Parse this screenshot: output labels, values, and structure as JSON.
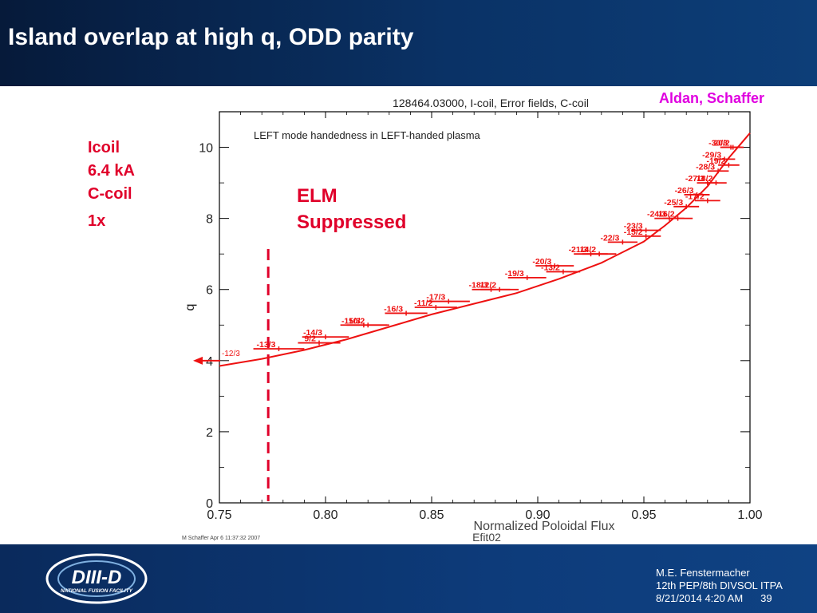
{
  "slide": {
    "title": "Island overlap at high q, ODD parity",
    "authors": "Aldan, Schaffer",
    "coil_lines": [
      "Icoil",
      "6.4 kA",
      "C-coil",
      "1x"
    ],
    "elm_lines": [
      "ELM",
      "Suppressed"
    ]
  },
  "footer": {
    "author": "M.E. Fenstermacher",
    "meeting": "12th PEP/8th DIVSOL ITPA",
    "date": "8/21/2014 4:20 AM",
    "page": "39"
  },
  "logo": {
    "main": "DIII-D",
    "sub": "NATIONAL FUSION FACILITY"
  },
  "colors": {
    "header": "#0a3266",
    "footer": "#0d3b7a",
    "series": "#ee1111",
    "label": "#e0002a",
    "authors": "#e000e0"
  },
  "chart_data": {
    "type": "line",
    "title": "128464.03000, I-coil, Error fields, C-coil",
    "subtitle": "LEFT mode handedness in LEFT-handed plasma",
    "xlabel": "Normalized Poloidal Flux",
    "xlabel2": "Efit02",
    "ylabel": "q",
    "xlim": [
      0.75,
      1.0
    ],
    "ylim": [
      0,
      11
    ],
    "xticks": [
      "0.75",
      "0.80",
      "0.85",
      "0.90",
      "0.95",
      "1.00"
    ],
    "yticks": [
      "0",
      "2",
      "4",
      "6",
      "8",
      "10"
    ],
    "grid": false,
    "footnote": "M Schaffer Apr  6 11:37:32 2007",
    "q_profile": {
      "x": [
        0.75,
        0.77,
        0.79,
        0.81,
        0.83,
        0.85,
        0.87,
        0.89,
        0.91,
        0.93,
        0.95,
        0.96,
        0.97,
        0.98,
        0.985,
        0.99,
        0.995,
        1.0
      ],
      "y": [
        3.85,
        4.05,
        4.3,
        4.6,
        4.95,
        5.3,
        5.6,
        5.9,
        6.3,
        6.75,
        7.35,
        7.8,
        8.3,
        8.9,
        9.3,
        9.7,
        10.05,
        10.4
      ]
    },
    "boundary_psi": 0.773,
    "edge_arrow_q": 4.0,
    "edge_arrow_label": "-12/3",
    "islands": [
      {
        "label": "-13/3",
        "psi": 0.778,
        "q": 4.333,
        "half_width": 0.012
      },
      {
        "label": "9/2",
        "psi": 0.797,
        "q": 4.5,
        "half_width": 0.01
      },
      {
        "label": "-14/3",
        "psi": 0.8,
        "q": 4.667,
        "half_width": 0.011
      },
      {
        "label": "-15/3",
        "psi": 0.818,
        "q": 5.0,
        "half_width": 0.011
      },
      {
        "label": "10/2",
        "psi": 0.82,
        "q": 5.0,
        "half_width": 0.01
      },
      {
        "label": "-16/3",
        "psi": 0.838,
        "q": 5.333,
        "half_width": 0.01
      },
      {
        "label": "-11/2",
        "psi": 0.852,
        "q": 5.5,
        "half_width": 0.01
      },
      {
        "label": "-17/3",
        "psi": 0.858,
        "q": 5.667,
        "half_width": 0.01
      },
      {
        "label": "-18/3",
        "psi": 0.878,
        "q": 6.0,
        "half_width": 0.009
      },
      {
        "label": "12/2",
        "psi": 0.882,
        "q": 6.0,
        "half_width": 0.009
      },
      {
        "label": "-19/3",
        "psi": 0.895,
        "q": 6.333,
        "half_width": 0.009
      },
      {
        "label": "-20/3",
        "psi": 0.908,
        "q": 6.667,
        "half_width": 0.009
      },
      {
        "label": "-13/2",
        "psi": 0.912,
        "q": 6.5,
        "half_width": 0.008
      },
      {
        "label": "-21/3",
        "psi": 0.925,
        "q": 7.0,
        "half_width": 0.008
      },
      {
        "label": "14/2",
        "psi": 0.929,
        "q": 7.0,
        "half_width": 0.008
      },
      {
        "label": "-22/3",
        "psi": 0.94,
        "q": 7.333,
        "half_width": 0.007
      },
      {
        "label": "-15/2",
        "psi": 0.951,
        "q": 7.5,
        "half_width": 0.007
      },
      {
        "label": "-23/3",
        "psi": 0.951,
        "q": 7.667,
        "half_width": 0.007
      },
      {
        "label": "-24/3",
        "psi": 0.962,
        "q": 8.0,
        "half_width": 0.007
      },
      {
        "label": "16/2",
        "psi": 0.966,
        "q": 8.0,
        "half_width": 0.007
      },
      {
        "label": "-25/3",
        "psi": 0.97,
        "q": 8.333,
        "half_width": 0.006
      },
      {
        "label": "-17/2",
        "psi": 0.98,
        "q": 8.5,
        "half_width": 0.006
      },
      {
        "label": "-26/3",
        "psi": 0.975,
        "q": 8.667,
        "half_width": 0.006
      },
      {
        "label": "-27/3",
        "psi": 0.98,
        "q": 9.0,
        "half_width": 0.005
      },
      {
        "label": "18/2",
        "psi": 0.984,
        "q": 9.0,
        "half_width": 0.005
      },
      {
        "label": "-28/3",
        "psi": 0.985,
        "q": 9.333,
        "half_width": 0.005
      },
      {
        "label": "-19/2",
        "psi": 0.99,
        "q": 9.5,
        "half_width": 0.005
      },
      {
        "label": "-29/3",
        "psi": 0.988,
        "q": 9.667,
        "half_width": 0.005
      },
      {
        "label": "20/2",
        "psi": 0.992,
        "q": 10.0,
        "half_width": 0.005
      },
      {
        "label": "-30/3",
        "psi": 0.991,
        "q": 10.0,
        "half_width": 0.005
      }
    ]
  }
}
